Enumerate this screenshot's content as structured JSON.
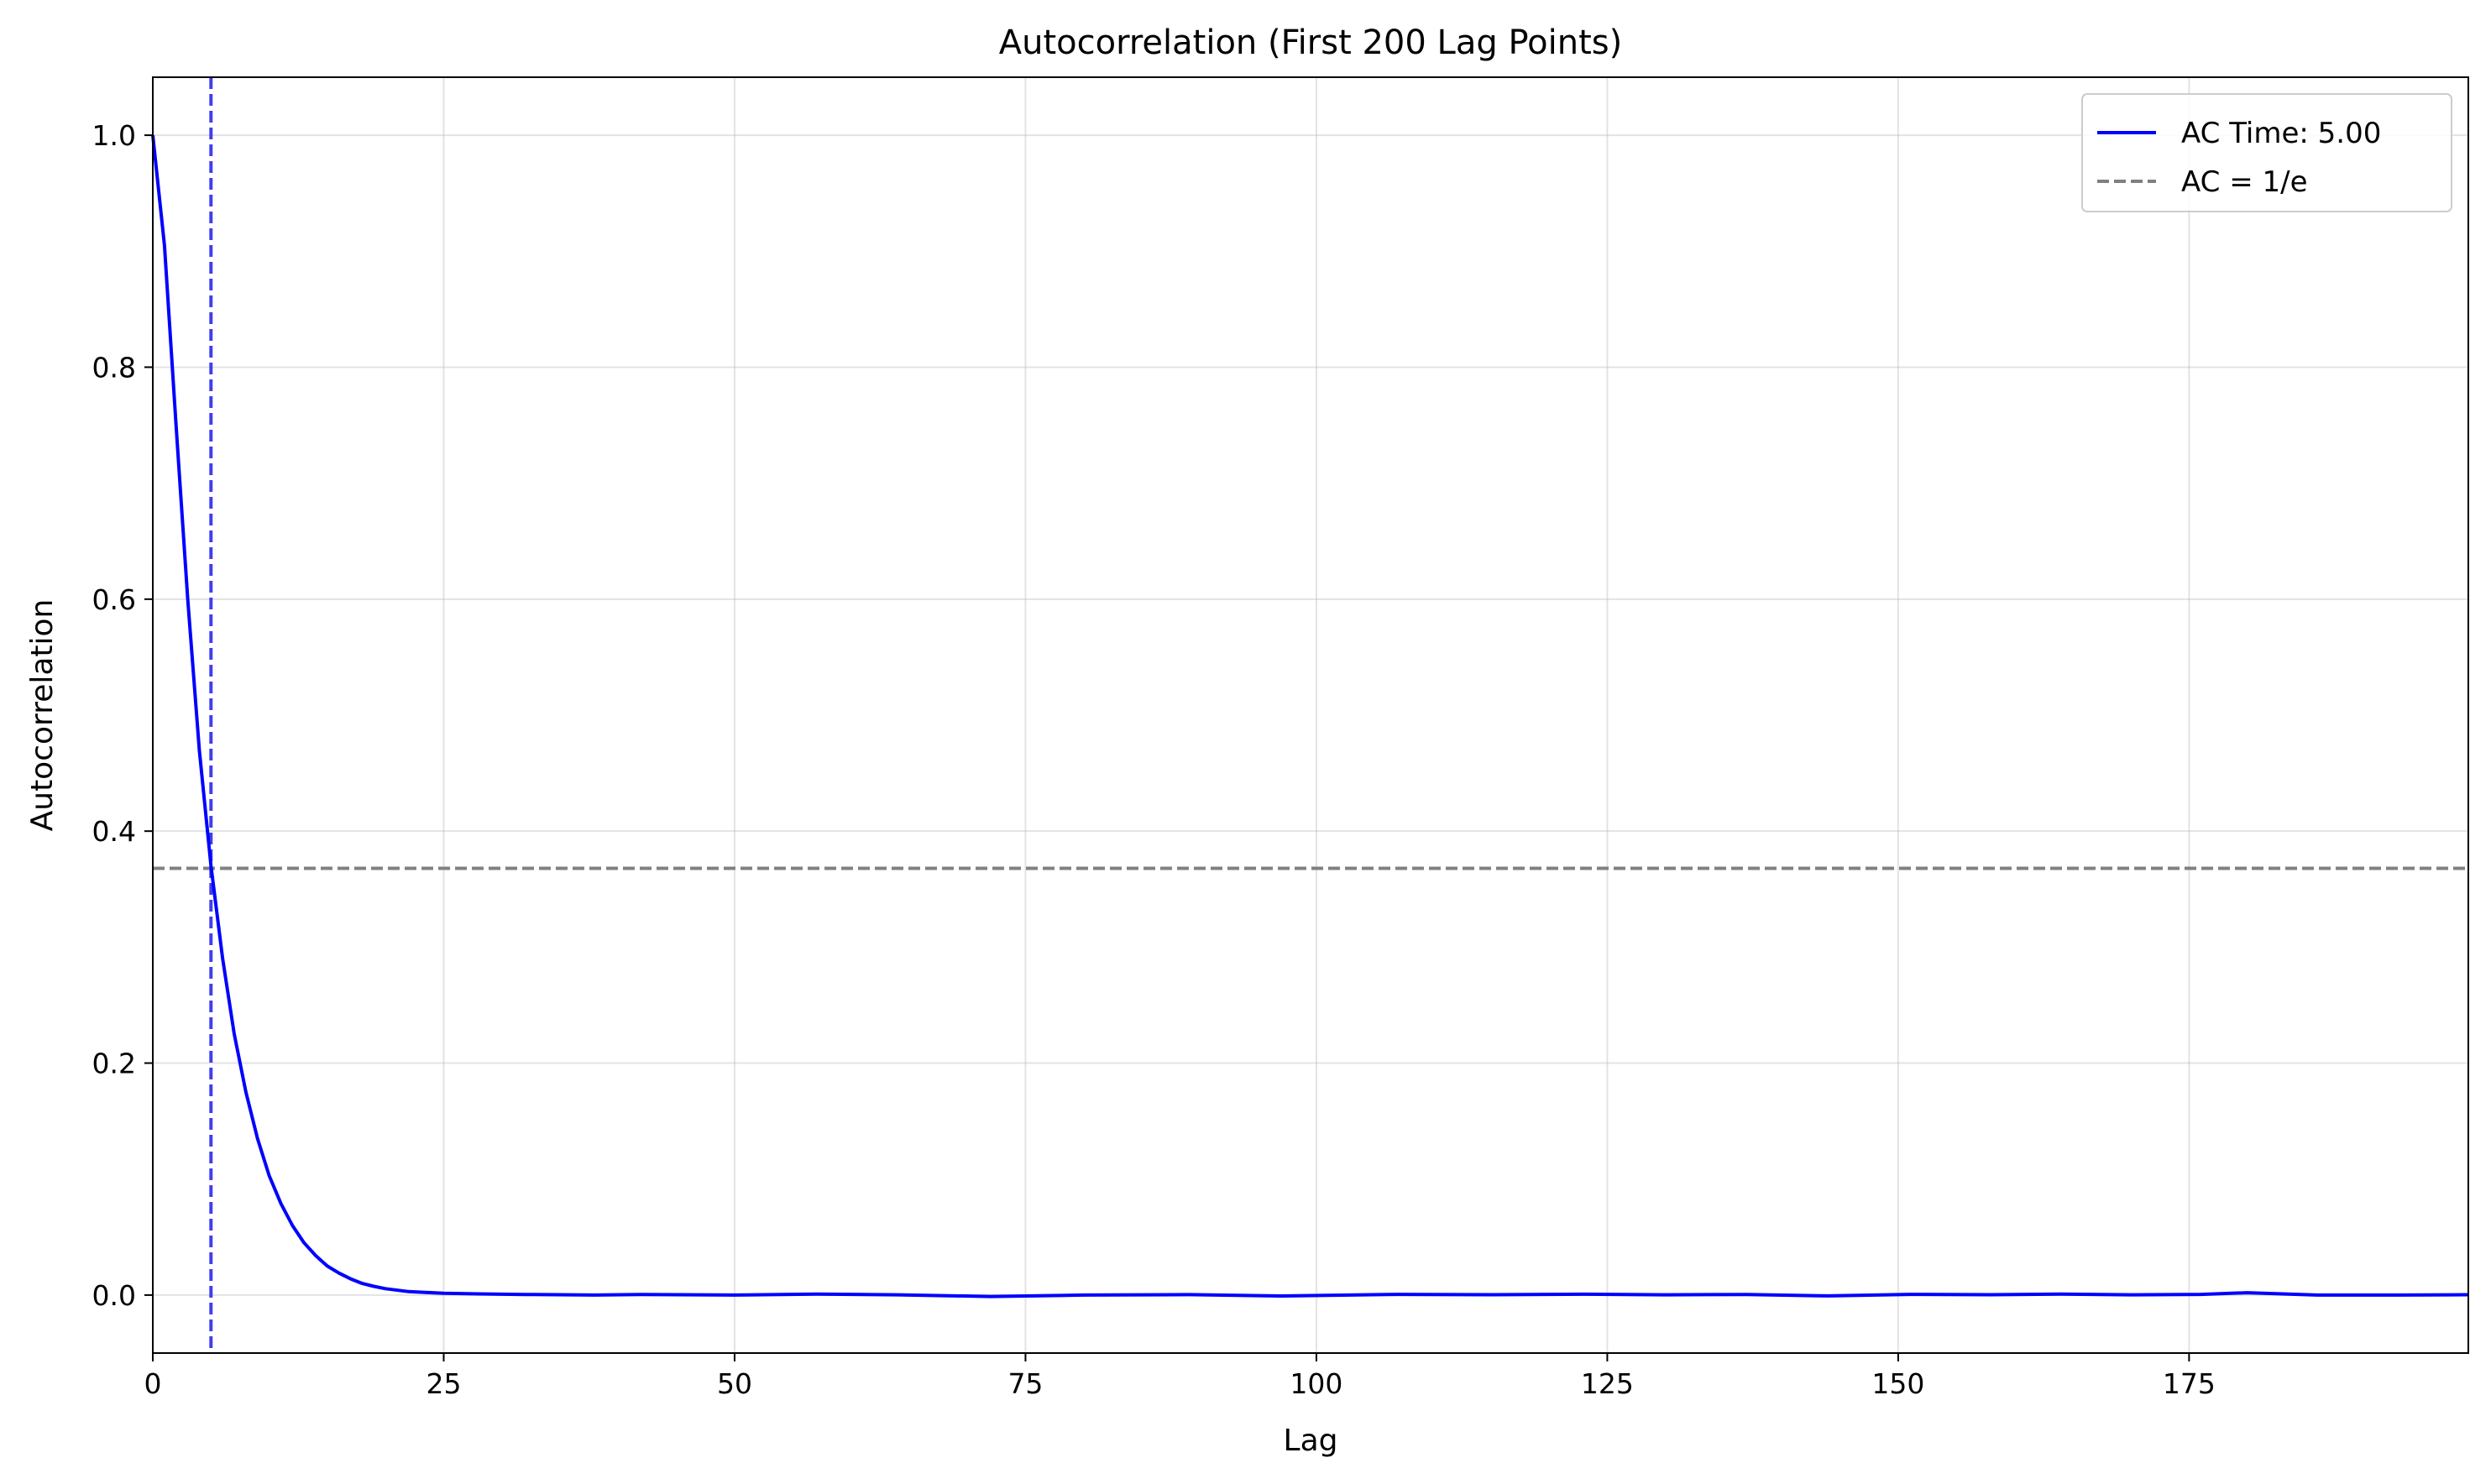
{
  "chart_data": {
    "type": "line",
    "title": "Autocorrelation (First 200 Lag Points)",
    "xlabel": "Lag",
    "ylabel": "Autocorrelation",
    "xlim": [
      0,
      199
    ],
    "ylim": [
      -0.05,
      1.05
    ],
    "xticks": [
      0,
      25,
      50,
      75,
      100,
      125,
      150,
      175
    ],
    "xtick_labels": [
      "0",
      "25",
      "50",
      "75",
      "100",
      "125",
      "150",
      "175"
    ],
    "yticks": [
      0.0,
      0.2,
      0.4,
      0.6,
      0.8,
      1.0
    ],
    "ytick_labels": [
      "0.0",
      "0.2",
      "0.4",
      "0.6",
      "0.8",
      "1.0"
    ],
    "grid": true,
    "legend_position": "upper right",
    "colors": {
      "series": "#0000ff",
      "reference": "#808080",
      "marker": "#3f3fef"
    },
    "series": [
      {
        "name": "AC Time: 5.00",
        "style": "solid",
        "x": [
          0,
          1,
          2,
          3,
          4,
          5,
          6,
          7,
          8,
          9,
          10,
          11,
          12,
          13,
          14,
          15,
          16,
          17,
          18,
          19,
          20,
          22,
          25,
          28,
          32,
          38,
          42,
          50,
          57,
          64,
          72,
          80,
          89,
          97,
          107,
          115,
          123,
          130,
          137,
          144,
          151,
          158,
          164,
          170,
          176,
          180,
          186,
          193,
          199
        ],
        "values": [
          1.0,
          0.905,
          0.75,
          0.6,
          0.47,
          0.37,
          0.29,
          0.225,
          0.175,
          0.135,
          0.103,
          0.079,
          0.06,
          0.045,
          0.034,
          0.025,
          0.019,
          0.014,
          0.01,
          0.0075,
          0.0055,
          0.003,
          0.0015,
          0.001,
          0.0005,
          0.0,
          0.0005,
          0.0,
          0.0008,
          0.0002,
          -0.0012,
          0.0,
          0.0004,
          -0.0008,
          0.0006,
          0.0003,
          0.0007,
          0.0002,
          0.0005,
          -0.0007,
          0.0006,
          0.0003,
          0.0008,
          0.0002,
          0.0006,
          0.002,
          0.0,
          0.0,
          0.0003
        ]
      },
      {
        "name": "AC = 1/e",
        "style": "dashed",
        "y": 0.3679
      }
    ],
    "vline": {
      "x": 5.0,
      "style": "dashed"
    }
  }
}
